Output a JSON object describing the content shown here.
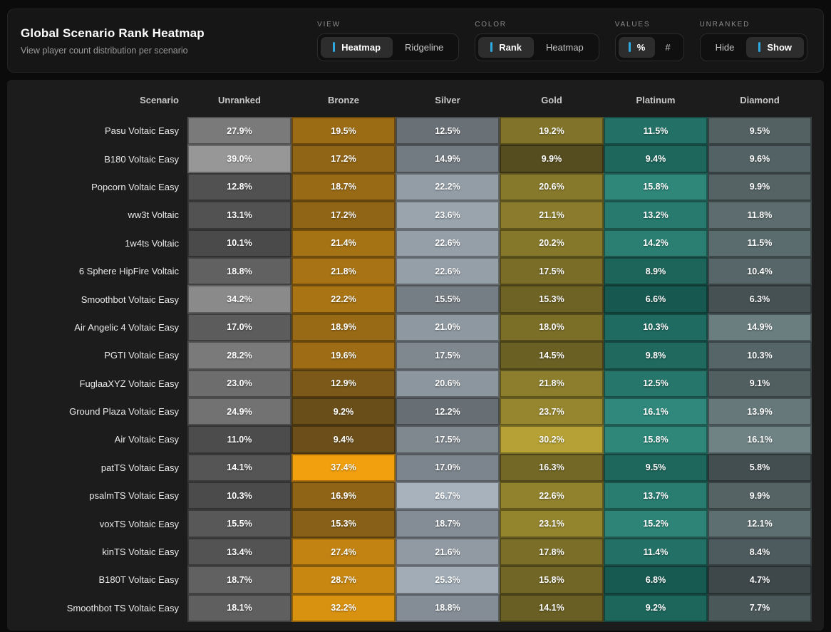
{
  "page": {
    "title": "Global Scenario Rank Heatmap",
    "subtitle": "View player count distribution per scenario"
  },
  "accent_color": "#2fa9e2",
  "controls": {
    "view": {
      "label": "VIEW",
      "options": [
        "Heatmap",
        "Ridgeline"
      ],
      "active": "Heatmap"
    },
    "color": {
      "label": "COLOR",
      "options": [
        "Rank",
        "Heatmap"
      ],
      "active": "Rank"
    },
    "values": {
      "label": "VALUES",
      "options": [
        "%",
        "#"
      ],
      "active": "%"
    },
    "unranked": {
      "label": "UNRANKED",
      "options": [
        "Hide",
        "Show"
      ],
      "active": "Show"
    }
  },
  "chart_data": {
    "type": "heatmap",
    "title": "Global Scenario Rank Heatmap",
    "corner_header": "Scenario",
    "value_suffix": "%",
    "columns": [
      "Unranked",
      "Bronze",
      "Silver",
      "Gold",
      "Platinum",
      "Diamond"
    ],
    "rows": [
      "Pasu Voltaic Easy",
      "B180 Voltaic Easy",
      "Popcorn Voltaic Easy",
      "ww3t Voltaic",
      "1w4ts Voltaic",
      "6 Sphere HipFire Voltaic",
      "Smoothbot Voltaic Easy",
      "Air Angelic 4 Voltaic Easy",
      "PGTI Voltaic Easy",
      "FuglaaXYZ Voltaic Easy",
      "Ground Plaza Voltaic Easy",
      "Air Voltaic Easy",
      "patTS Voltaic Easy",
      "psalmTS Voltaic Easy",
      "voxTS Voltaic Easy",
      "kinTS Voltaic Easy",
      "B180T Voltaic Easy",
      "Smoothbot TS Voltaic Easy"
    ],
    "values": [
      [
        27.9,
        19.5,
        12.5,
        19.2,
        11.5,
        9.5
      ],
      [
        39.0,
        17.2,
        14.9,
        9.9,
        9.4,
        9.6
      ],
      [
        12.8,
        18.7,
        22.2,
        20.6,
        15.8,
        9.9
      ],
      [
        13.1,
        17.2,
        23.6,
        21.1,
        13.2,
        11.8
      ],
      [
        10.1,
        21.4,
        22.6,
        20.2,
        14.2,
        11.5
      ],
      [
        18.8,
        21.8,
        22.6,
        17.5,
        8.9,
        10.4
      ],
      [
        34.2,
        22.2,
        15.5,
        15.3,
        6.6,
        6.3
      ],
      [
        17.0,
        18.9,
        21.0,
        18.0,
        10.3,
        14.9
      ],
      [
        28.2,
        19.6,
        17.5,
        14.5,
        9.8,
        10.3
      ],
      [
        23.0,
        12.9,
        20.6,
        21.8,
        12.5,
        9.1
      ],
      [
        24.9,
        9.2,
        12.2,
        23.7,
        16.1,
        13.9
      ],
      [
        11.0,
        9.4,
        17.5,
        30.2,
        15.8,
        16.1
      ],
      [
        14.1,
        37.4,
        17.0,
        16.3,
        9.5,
        5.8
      ],
      [
        10.3,
        16.9,
        26.7,
        22.6,
        13.7,
        9.9
      ],
      [
        15.5,
        15.3,
        18.7,
        23.1,
        15.2,
        12.1
      ],
      [
        13.4,
        27.4,
        21.6,
        17.8,
        11.4,
        8.4
      ],
      [
        18.7,
        28.7,
        25.3,
        15.8,
        6.8,
        4.7
      ],
      [
        18.1,
        32.2,
        18.8,
        14.1,
        9.2,
        7.7
      ]
    ],
    "color_scales": [
      {
        "name": "Unranked",
        "v0": 0,
        "v1": 40,
        "c0": [
          47,
          47,
          47
        ],
        "c1": [
          154,
          154,
          154
        ]
      },
      {
        "name": "Bronze",
        "v0": 0,
        "v1": 40,
        "c0": [
          62,
          51,
          30
        ],
        "c1": [
          255,
          168,
          12
        ]
      },
      {
        "name": "Silver",
        "v0": 0,
        "v1": 40,
        "c0": [
          50,
          54,
          56
        ],
        "c1": [
          225,
          240,
          255
        ]
      },
      {
        "name": "Gold",
        "v0": 0,
        "v1": 40,
        "c0": [
          38,
          36,
          20
        ],
        "c1": [
          227,
          202,
          65
        ]
      },
      {
        "name": "Platinum",
        "v0": 0,
        "v1": 40,
        "c0": [
          6,
          56,
          50
        ],
        "c1": [
          108,
          255,
          231
        ]
      },
      {
        "name": "Diamond",
        "v0": 0,
        "v1": 40,
        "c0": [
          42,
          48,
          51
        ],
        "c1": [
          214,
          255,
          255
        ]
      }
    ]
  }
}
